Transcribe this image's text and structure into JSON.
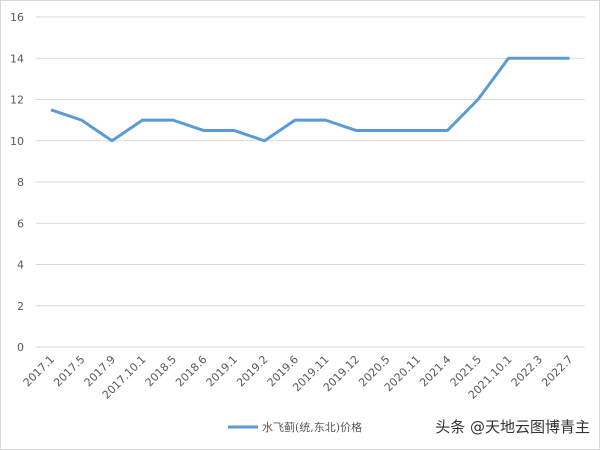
{
  "chart_data": {
    "type": "line",
    "categories": [
      "2017.1",
      "2017.5",
      "2017.9",
      "2017.10.1",
      "2018.5",
      "2018.6",
      "2019.1",
      "2019.2",
      "2019.6",
      "2019.11",
      "2019.12",
      "2020.5",
      "2020.11",
      "2021.4",
      "2021.5",
      "2021.10.1",
      "2022.3",
      "2022.7"
    ],
    "series": [
      {
        "name": "水飞蓟(统,东北)价格",
        "color": "#5b9bd5",
        "values": [
          11.5,
          11,
          10,
          11,
          11,
          10.5,
          10.5,
          10,
          11,
          11,
          10.5,
          10.5,
          10.5,
          10.5,
          12,
          14,
          14,
          14
        ]
      }
    ],
    "ylim": [
      0,
      16
    ],
    "yticks": [
      0,
      2,
      4,
      6,
      8,
      10,
      12,
      14,
      16
    ],
    "grid": true,
    "legend": "bottom",
    "watermark": "头条 @天地云图博青主"
  }
}
